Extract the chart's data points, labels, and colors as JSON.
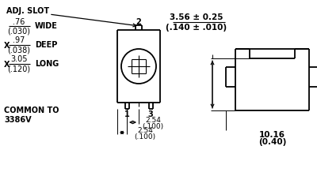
{
  "bg_color": "#ffffff",
  "line_color": "#000000",
  "labels": {
    "adj_slot": "ADJ. SLOT",
    "wide_top": ".76",
    "wide_bot": "(.030)",
    "wide_label": "WIDE",
    "deep_top": ".97",
    "deep_bot": "(.038)",
    "deep_label": "DEEP",
    "long_top": "3.05",
    "long_bot": "(.120)",
    "long_label": "LONG",
    "common": "COMMON TO",
    "common2": "3386V",
    "dim1_top": "2.54",
    "dim1_bot": "(.100)",
    "dim2_top": "2.54",
    "dim2_bot": "(.100)",
    "height_top": "3.56 ± 0.25",
    "height_bot": "(.140 ± .010)",
    "width_top": "10.16",
    "width_bot": "(0.40)",
    "pin1": "1",
    "pin2": "2",
    "pin3": "3"
  }
}
